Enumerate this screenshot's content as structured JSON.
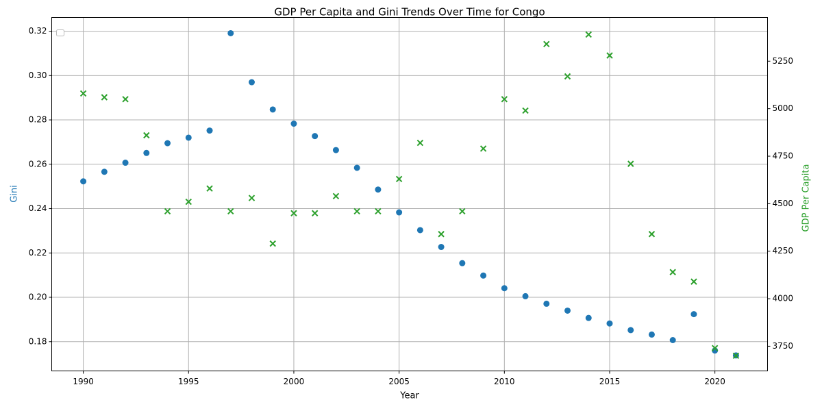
{
  "chart_data": {
    "type": "scatter",
    "title": "GDP Per Capita and Gini Trends Over Time for Congo",
    "xlabel": "Year",
    "ylabel_left": "Gini",
    "ylabel_right": "GDP Per Capita",
    "xlim": [
      1988.5,
      2022.5
    ],
    "ylim_left": [
      0.1668,
      0.3262
    ],
    "ylim_right": [
      3620,
      5480
    ],
    "x_ticks": [
      1990,
      1995,
      2000,
      2005,
      2010,
      2015,
      2020
    ],
    "y_left_ticks": [
      0.18,
      0.2,
      0.22,
      0.24,
      0.26,
      0.28,
      0.3,
      0.32
    ],
    "y_left_tick_labels": [
      "0.18",
      "0.20",
      "0.22",
      "0.24",
      "0.26",
      "0.28",
      "0.30",
      "0.32"
    ],
    "y_right_ticks": [
      3750,
      4000,
      4250,
      4500,
      4750,
      5000,
      5250
    ],
    "grid": true,
    "legend": "upper-left (empty)",
    "colors": {
      "gini": "#1f77b4",
      "gdp": "#2ca02c"
    },
    "series": [
      {
        "name": "Gini",
        "axis": "left",
        "marker": "circle",
        "x": [
          1990,
          1991,
          1992,
          1993,
          1994,
          1995,
          1996,
          1997,
          1998,
          1999,
          2000,
          2001,
          2002,
          2003,
          2004,
          2005,
          2006,
          2007,
          2008,
          2009,
          2010,
          2011,
          2012,
          2013,
          2014,
          2015,
          2016,
          2017,
          2018,
          2019,
          2020,
          2021
        ],
        "y": [
          0.2523,
          0.2566,
          0.2607,
          0.2651,
          0.2695,
          0.272,
          0.2752,
          0.3191,
          0.297,
          0.2847,
          0.2783,
          0.2727,
          0.2664,
          0.2584,
          0.2486,
          0.2383,
          0.2303,
          0.2227,
          0.2154,
          0.2098,
          0.2041,
          0.2005,
          0.1971,
          0.194,
          0.1907,
          0.1882,
          0.1852,
          0.1832,
          0.1807,
          0.1924,
          0.176,
          0.1738
        ]
      },
      {
        "name": "GDP Per Capita",
        "axis": "right",
        "marker": "x",
        "x": [
          1990,
          1991,
          1992,
          1993,
          1994,
          1995,
          1996,
          1997,
          1998,
          1999,
          2000,
          2001,
          2002,
          2003,
          2004,
          2005,
          2006,
          2007,
          2008,
          2009,
          2010,
          2011,
          2012,
          2013,
          2014,
          2015,
          2016,
          2017,
          2018,
          2019,
          2020,
          2021
        ],
        "y": [
          5080,
          5060,
          5050,
          4860,
          4460,
          4510,
          4580,
          4460,
          4530,
          4290,
          4450,
          4450,
          4540,
          4460,
          4460,
          4630,
          4820,
          4340,
          4460,
          4790,
          5050,
          4990,
          5340,
          5170,
          5390,
          5280,
          4710,
          4340,
          4140,
          4090,
          3740,
          3700
        ]
      }
    ]
  }
}
